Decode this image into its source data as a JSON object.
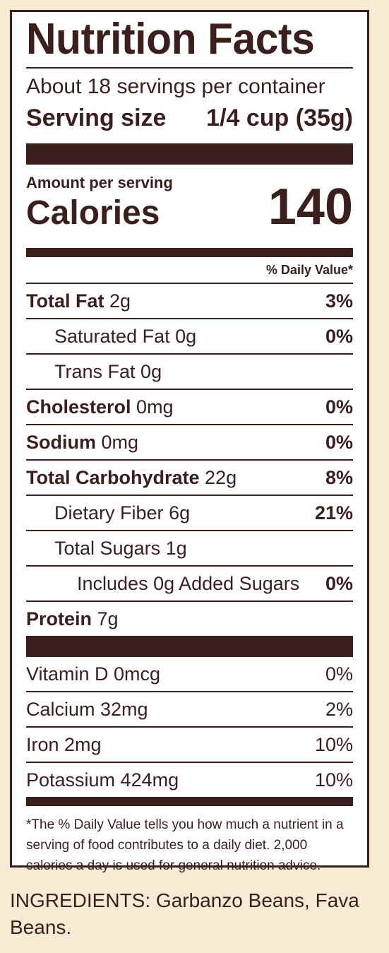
{
  "label": {
    "title": "Nutrition Facts",
    "servings_per_container": "About 18 servings per container",
    "serving_size_label": "Serving size",
    "serving_size_value": "1/4 cup (35g)",
    "amount_per_serving": "Amount per serving",
    "calories_label": "Calories",
    "calories_value": "140",
    "daily_value_header": "% Daily Value*",
    "nutrients": [
      {
        "name": "Total Fat",
        "amount": "2g",
        "dv": "3%"
      },
      {
        "name": "Saturated Fat",
        "amount": "0g",
        "dv": "0%"
      },
      {
        "name": "Trans Fat",
        "amount": "0g",
        "dv": ""
      },
      {
        "name": "Cholesterol",
        "amount": "0mg",
        "dv": "0%"
      },
      {
        "name": "Sodium",
        "amount": "0mg",
        "dv": "0%"
      },
      {
        "name": "Total Carbohydrate",
        "amount": "22g",
        "dv": "8%"
      },
      {
        "name": "Dietary Fiber",
        "amount": "6g",
        "dv": "21%"
      },
      {
        "name": "Total Sugars",
        "amount": "1g",
        "dv": ""
      },
      {
        "name": "Includes 0g Added Sugars",
        "amount": "",
        "dv": "0%"
      },
      {
        "name": "Protein",
        "amount": "7g",
        "dv": ""
      }
    ],
    "vitamins": [
      {
        "name": "Vitamin D 0mcg",
        "dv": "0%"
      },
      {
        "name": "Calcium 32mg",
        "dv": "2%"
      },
      {
        "name": "Iron 2mg",
        "dv": "10%"
      },
      {
        "name": "Potassium 424mg",
        "dv": "10%"
      }
    ],
    "footnote": "*The % Daily Value tells you how much a nutrient in a serving of food contributes to a daily diet. 2,000 calories a day is used for general nutrition advice."
  },
  "ingredients": "INGREDIENTS: Garbanzo Beans, Fava Beans.",
  "colors": {
    "ink": "#3a1f1c",
    "background": "#f6ecd4",
    "panel": "#ffffff"
  }
}
